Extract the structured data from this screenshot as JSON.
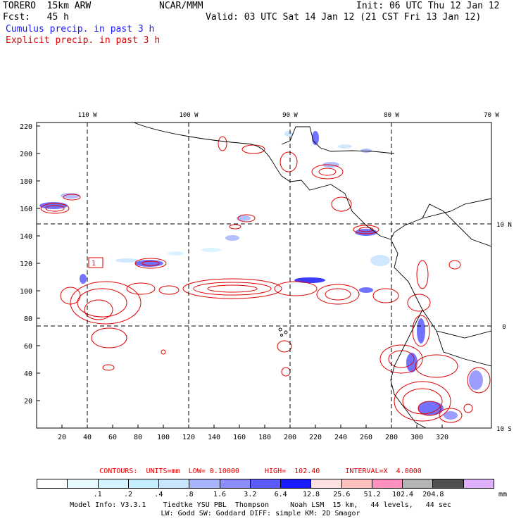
{
  "header": {
    "model": "TORERO  15km ARW",
    "org": "NCAR/MMM",
    "init": "Init: 06 UTC Thu 12 Jan 12",
    "fcst": "Fcst:   45 h",
    "valid": "Valid: 03 UTC Sat 14 Jan 12 (21 CST Fri 13 Jan 12)",
    "field1": "Cumulus precip. in past 3 h",
    "field2": "Explicit precip. in past 3 h"
  },
  "map": {
    "lon_labels": [
      "110 W",
      "100 W",
      "90 W",
      "80 W",
      "70 W"
    ],
    "lat_labels": [
      "10 N",
      "0",
      "10 S"
    ],
    "x_ticks": [
      "20",
      "40",
      "60",
      "80",
      "100",
      "120",
      "140",
      "160",
      "180",
      "200",
      "220",
      "240",
      "260",
      "280",
      "300",
      "320"
    ],
    "y_ticks": [
      "20",
      "40",
      "60",
      "80",
      "100",
      "120",
      "140",
      "160",
      "180",
      "200",
      "220"
    ],
    "box_label": "1"
  },
  "contours_text": "CONTOURS:  UNITS=mm  LOW= 0.10000      HIGH=  102.40      INTERVAL=X  4.0000",
  "legend": {
    "colors": [
      "#ffffff",
      "#e8f8ff",
      "#d4f4ff",
      "#c4f0ff",
      "#c8e4ff",
      "#a8b4ff",
      "#8c8cff",
      "#5a5aff",
      "#1a1aff",
      "#ffe0e0",
      "#ffc0c0",
      "#ff90c0",
      "#b4b4b4",
      "#505050",
      "#e0b0ff"
    ],
    "labels": [
      ".1",
      ".2",
      ".4",
      ".8",
      "1.6",
      "3.2",
      "6.4",
      "12.8",
      "25.6",
      "51.2",
      "102.4",
      "204.8"
    ],
    "unit": "mm"
  },
  "footer": {
    "line1": "Model Info: V3.3.1    Tiedtke YSU PBL  Thompson     Noah LSM  15 km,   44 levels,   44 sec",
    "line2": "LW: Godd SW: Goddard DIFF: simple KM: 2D Smagor"
  },
  "colors": {
    "contour": "#e00000",
    "cumulus": "#1a1aff",
    "grid": "#000000"
  }
}
